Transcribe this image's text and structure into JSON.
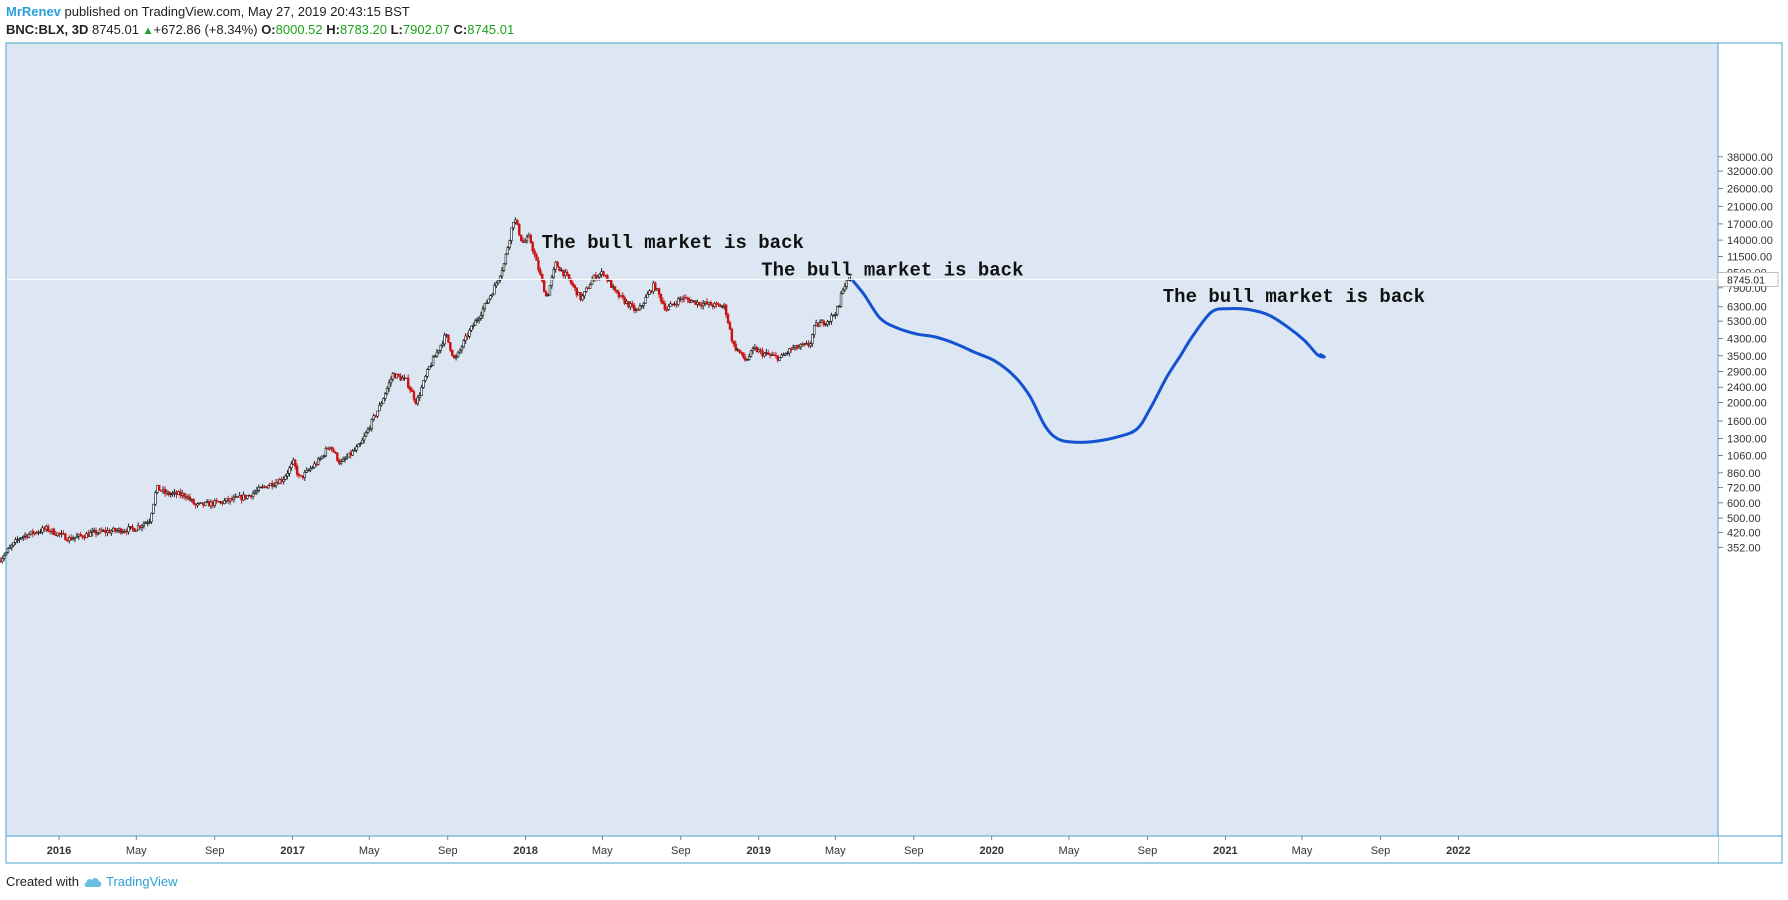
{
  "header": {
    "author": "MrRenev",
    "published_text": "published on TradingView.com, May 27, 2019 20:43:15 BST",
    "symbol": "BNC:BLX, 3D",
    "last_price": "8745.01",
    "change_arrow": "▲",
    "change_text": "+672.86 (+8.34%)",
    "o_label": "O:",
    "o_value": "8000.52",
    "h_label": "H:",
    "h_value": "8783.20",
    "l_label": "L:",
    "l_value": "7902.07",
    "c_label": "C:",
    "c_value": "8745.01"
  },
  "footer": {
    "created_with": "Created with",
    "brand": "TradingView"
  },
  "colors": {
    "background": "#dce7f3",
    "border": "#4aa3c7",
    "candle_up": "#111111",
    "candle_down": "#cc1111",
    "projection": "#1452d0",
    "price_line": "#ffffff"
  },
  "chart_data": {
    "type": "candlestick",
    "scale": "log",
    "interval": "3D",
    "current_price": 8745.01,
    "current_price_label": "8745.01",
    "y_ticks": [
      "38000.00",
      "32000.00",
      "26000.00",
      "21000.00",
      "17000.00",
      "14000.00",
      "11500.00",
      "9500.00",
      "7900.00",
      "6300.00",
      "5300.00",
      "4300.00",
      "3500.00",
      "2900.00",
      "2400.00",
      "2000.00",
      "1600.00",
      "1300.00",
      "1060.00",
      "860.00",
      "720.00",
      "600.00",
      "500.00",
      "420.00",
      "352.00"
    ],
    "x_ticks": [
      {
        "label": "2016",
        "date": "2016-01-01",
        "bold": true
      },
      {
        "label": "May",
        "date": "2016-05-01",
        "bold": false
      },
      {
        "label": "Sep",
        "date": "2016-09-01",
        "bold": false
      },
      {
        "label": "2017",
        "date": "2017-01-01",
        "bold": true
      },
      {
        "label": "May",
        "date": "2017-05-01",
        "bold": false
      },
      {
        "label": "Sep",
        "date": "2017-09-01",
        "bold": false
      },
      {
        "label": "2018",
        "date": "2018-01-01",
        "bold": true
      },
      {
        "label": "May",
        "date": "2018-05-01",
        "bold": false
      },
      {
        "label": "Sep",
        "date": "2018-09-01",
        "bold": false
      },
      {
        "label": "2019",
        "date": "2019-01-01",
        "bold": true
      },
      {
        "label": "May",
        "date": "2019-05-01",
        "bold": false
      },
      {
        "label": "Sep",
        "date": "2019-09-01",
        "bold": false
      },
      {
        "label": "2020",
        "date": "2020-01-01",
        "bold": true
      },
      {
        "label": "May",
        "date": "2020-05-01",
        "bold": false
      },
      {
        "label": "Sep",
        "date": "2020-09-01",
        "bold": false
      },
      {
        "label": "2021",
        "date": "2021-01-01",
        "bold": true
      },
      {
        "label": "May",
        "date": "2021-05-01",
        "bold": false
      },
      {
        "label": "Sep",
        "date": "2021-09-01",
        "bold": false
      },
      {
        "label": "2022",
        "date": "2022-01-01",
        "bold": true
      }
    ],
    "price_path": [
      [
        "2015-10-01",
        300
      ],
      [
        "2015-11-05",
        400
      ],
      [
        "2015-12-15",
        440
      ],
      [
        "2016-01-20",
        390
      ],
      [
        "2016-03-01",
        420
      ],
      [
        "2016-05-01",
        440
      ],
      [
        "2016-05-25",
        490
      ],
      [
        "2016-06-05",
        720
      ],
      [
        "2016-06-20",
        670
      ],
      [
        "2016-07-20",
        660
      ],
      [
        "2016-08-05",
        580
      ],
      [
        "2016-09-15",
        605
      ],
      [
        "2016-10-25",
        650
      ],
      [
        "2016-11-25",
        740
      ],
      [
        "2016-12-20",
        800
      ],
      [
        "2017-01-05",
        970
      ],
      [
        "2017-01-15",
        800
      ],
      [
        "2017-02-15",
        1000
      ],
      [
        "2017-03-03",
        1200
      ],
      [
        "2017-03-20",
        960
      ],
      [
        "2017-04-20",
        1200
      ],
      [
        "2017-05-20",
        1900
      ],
      [
        "2017-06-10",
        2800
      ],
      [
        "2017-07-01",
        2600
      ],
      [
        "2017-07-17",
        2000
      ],
      [
        "2017-08-05",
        3000
      ],
      [
        "2017-09-01",
        4500
      ],
      [
        "2017-09-15",
        3300
      ],
      [
        "2017-10-05",
        4500
      ],
      [
        "2017-10-30",
        6200
      ],
      [
        "2017-11-15",
        7800
      ],
      [
        "2017-12-01",
        10500
      ],
      [
        "2017-12-17",
        18500
      ],
      [
        "2017-12-30",
        13500
      ],
      [
        "2018-01-10",
        14500
      ],
      [
        "2018-01-20",
        11000
      ],
      [
        "2018-02-06",
        7000
      ],
      [
        "2018-02-20",
        10500
      ],
      [
        "2018-03-10",
        9000
      ],
      [
        "2018-04-01",
        6900
      ],
      [
        "2018-04-20",
        8900
      ],
      [
        "2018-05-06",
        9500
      ],
      [
        "2018-05-25",
        7400
      ],
      [
        "2018-06-28",
        5900
      ],
      [
        "2018-07-24",
        8200
      ],
      [
        "2018-08-12",
        6100
      ],
      [
        "2018-09-05",
        7000
      ],
      [
        "2018-10-01",
        6600
      ],
      [
        "2018-11-12",
        6300
      ],
      [
        "2018-11-25",
        4000
      ],
      [
        "2018-12-15",
        3300
      ],
      [
        "2018-12-28",
        3800
      ],
      [
        "2019-01-10",
        3600
      ],
      [
        "2019-02-07",
        3400
      ],
      [
        "2019-02-24",
        3800
      ],
      [
        "2019-03-25",
        4000
      ],
      [
        "2019-04-02",
        5000
      ],
      [
        "2019-04-25",
        5400
      ],
      [
        "2019-05-10",
        6300
      ],
      [
        "2019-05-15",
        7900
      ],
      [
        "2019-05-27",
        8745
      ]
    ],
    "projection_path": [
      [
        "2019-05-29",
        8550
      ],
      [
        "2019-06-15",
        7300
      ],
      [
        "2019-07-10",
        5500
      ],
      [
        "2019-08-05",
        4900
      ],
      [
        "2019-09-05",
        4550
      ],
      [
        "2019-10-05",
        4380
      ],
      [
        "2019-11-05",
        4050
      ],
      [
        "2019-12-05",
        3650
      ],
      [
        "2020-01-05",
        3300
      ],
      [
        "2020-02-05",
        2750
      ],
      [
        "2020-03-01",
        2150
      ],
      [
        "2020-03-25",
        1500
      ],
      [
        "2020-04-15",
        1285
      ],
      [
        "2020-05-15",
        1240
      ],
      [
        "2020-06-15",
        1260
      ],
      [
        "2020-07-15",
        1320
      ],
      [
        "2020-08-15",
        1450
      ],
      [
        "2020-09-05",
        1850
      ],
      [
        "2020-10-01",
        2700
      ],
      [
        "2020-10-25",
        3600
      ],
      [
        "2020-11-10",
        4400
      ],
      [
        "2020-12-10",
        5900
      ],
      [
        "2021-01-05",
        6150
      ],
      [
        "2021-02-05",
        6100
      ],
      [
        "2021-03-10",
        5700
      ],
      [
        "2021-04-10",
        4900
      ],
      [
        "2021-05-05",
        4200
      ],
      [
        "2021-05-25",
        3550
      ],
      [
        "2021-06-05",
        3450
      ],
      [
        "2021-05-30",
        3550
      ]
    ],
    "annotations": [
      {
        "text": "The bull market is back",
        "date": "2018-01-26",
        "price": 12700
      },
      {
        "text": "The bull market is back",
        "date": "2019-01-05",
        "price": 9150
      },
      {
        "text": "The bull market is back",
        "date": "2020-09-25",
        "price": 6650
      }
    ]
  }
}
